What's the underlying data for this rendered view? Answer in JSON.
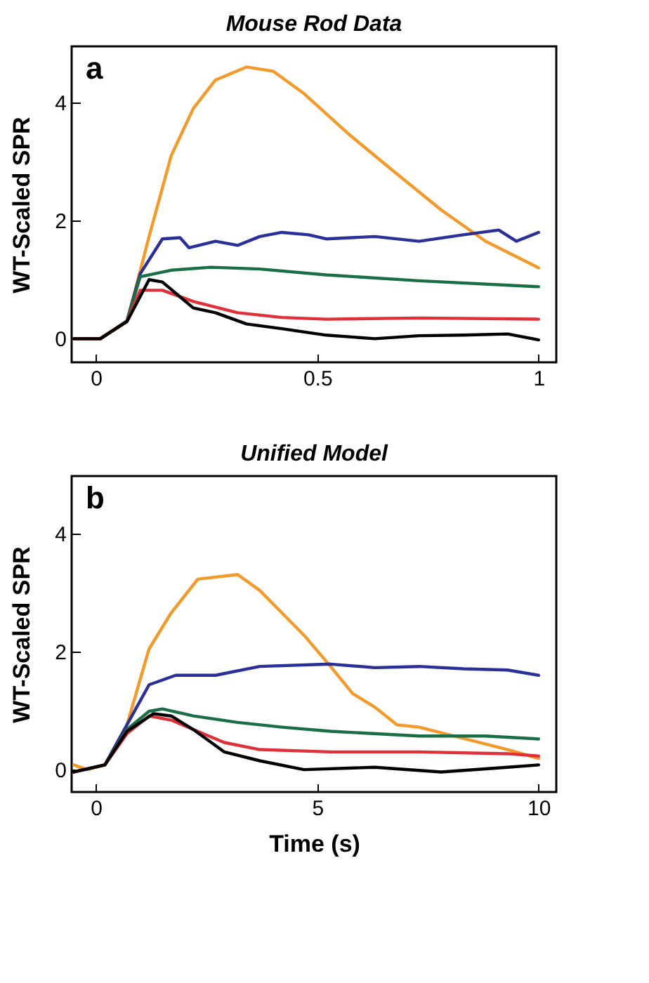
{
  "chart_data": [
    {
      "type": "line",
      "title": "Mouse Rod Data",
      "ylabel": "WT-Scaled SPR",
      "annotations": [
        "a"
      ],
      "xlim": [
        -0.055,
        1.04
      ],
      "ylim": [
        -0.4,
        4.95
      ],
      "xticks": [
        0,
        0.5,
        1
      ],
      "yticks": [
        0,
        2,
        4
      ],
      "grid": false,
      "series": [
        {
          "color": "#f39a2a",
          "x": [
            -0.05,
            0.008,
            0.07,
            0.12,
            0.17,
            0.22,
            0.27,
            0.34,
            0.4,
            0.47,
            0.57,
            0.68,
            0.78,
            0.88,
            1.0
          ],
          "values": [
            0,
            0,
            0.29,
            1.73,
            3.1,
            3.9,
            4.38,
            4.6,
            4.53,
            4.15,
            3.47,
            2.79,
            2.18,
            1.65,
            1.2
          ]
        },
        {
          "color": "#2b2f9a",
          "x": [
            -0.05,
            0.01,
            0.07,
            0.1,
            0.15,
            0.19,
            0.21,
            0.27,
            0.32,
            0.37,
            0.42,
            0.48,
            0.52,
            0.63,
            0.73,
            0.83,
            0.91,
            0.95,
            1.0
          ],
          "values": [
            0,
            0,
            0.3,
            1.1,
            1.69,
            1.71,
            1.54,
            1.65,
            1.58,
            1.73,
            1.8,
            1.76,
            1.69,
            1.73,
            1.65,
            1.76,
            1.84,
            1.65,
            1.8
          ]
        },
        {
          "color": "#1a6e45",
          "x": [
            -0.05,
            0.01,
            0.07,
            0.1,
            0.17,
            0.26,
            0.37,
            0.52,
            0.73,
            1.0
          ],
          "values": [
            0,
            0,
            0.3,
            1.05,
            1.16,
            1.21,
            1.18,
            1.08,
            0.98,
            0.88
          ]
        },
        {
          "color": "#e0303a",
          "x": [
            -0.05,
            0.01,
            0.07,
            0.1,
            0.15,
            0.22,
            0.32,
            0.42,
            0.52,
            0.73,
            1.0
          ],
          "values": [
            0,
            0,
            0.29,
            0.82,
            0.82,
            0.63,
            0.44,
            0.36,
            0.33,
            0.35,
            0.33
          ]
        },
        {
          "color": "#000000",
          "x": [
            -0.05,
            0.01,
            0.07,
            0.12,
            0.15,
            0.22,
            0.27,
            0.34,
            0.42,
            0.52,
            0.63,
            0.73,
            0.83,
            0.93,
            1.0
          ],
          "values": [
            0,
            0,
            0.29,
            1.0,
            0.96,
            0.52,
            0.44,
            0.25,
            0.17,
            0.06,
            0,
            0.05,
            0.06,
            0.08,
            -0.02
          ]
        }
      ]
    },
    {
      "type": "line",
      "title": "Unified Model",
      "ylabel": "WT-Scaled SPR",
      "xlabel": "Time (s)",
      "annotations": [
        "b"
      ],
      "xlim": [
        -0.55,
        10.4
      ],
      "ylim": [
        -0.38,
        4.98
      ],
      "xticks": [
        0,
        5,
        10
      ],
      "yticks": [
        0,
        2,
        4
      ],
      "grid": false,
      "series": [
        {
          "color": "#f39a2a",
          "x": [
            -0.5,
            -0.2,
            0.2,
            0.7,
            1.2,
            1.7,
            2.3,
            3.2,
            3.7,
            4.2,
            4.7,
            5.3,
            5.8,
            6.3,
            6.8,
            7.3,
            8.3,
            9.3,
            10
          ],
          "values": [
            0.08,
            0,
            0.08,
            0.76,
            2.05,
            2.66,
            3.23,
            3.31,
            3.04,
            2.66,
            2.28,
            1.75,
            1.29,
            1.06,
            0.76,
            0.72,
            0.53,
            0.34,
            0.19
          ]
        },
        {
          "color": "#2b2f9a",
          "x": [
            -0.5,
            0.2,
            0.7,
            1.2,
            1.8,
            2.7,
            3.7,
            5.3,
            6.3,
            7.3,
            8.3,
            9.3,
            10
          ],
          "values": [
            -0.04,
            0.08,
            0.76,
            1.44,
            1.6,
            1.6,
            1.75,
            1.79,
            1.73,
            1.75,
            1.71,
            1.69,
            1.6
          ]
        },
        {
          "color": "#1a6e45",
          "x": [
            -0.5,
            0.2,
            0.7,
            1.2,
            1.5,
            2.2,
            3.2,
            4.2,
            5.3,
            7.3,
            8.8,
            10
          ],
          "values": [
            -0.04,
            0.08,
            0.68,
            0.99,
            1.03,
            0.91,
            0.8,
            0.72,
            0.65,
            0.57,
            0.57,
            0.52
          ]
        },
        {
          "color": "#e0303a",
          "x": [
            -0.5,
            0.2,
            0.7,
            1.2,
            1.7,
            2.2,
            2.9,
            3.7,
            5.3,
            7.3,
            9.3,
            10
          ],
          "values": [
            -0.04,
            0.08,
            0.61,
            0.91,
            0.84,
            0.68,
            0.46,
            0.34,
            0.3,
            0.3,
            0.27,
            0.23
          ]
        },
        {
          "color": "#000000",
          "x": [
            -0.5,
            0.2,
            0.7,
            1.3,
            1.7,
            2.2,
            2.9,
            3.7,
            4.7,
            6.3,
            7.8,
            9.3,
            10
          ],
          "values": [
            -0.04,
            0.08,
            0.65,
            0.95,
            0.91,
            0.68,
            0.3,
            0.15,
            0,
            0.04,
            -0.04,
            0.04,
            0.08
          ]
        }
      ]
    }
  ]
}
